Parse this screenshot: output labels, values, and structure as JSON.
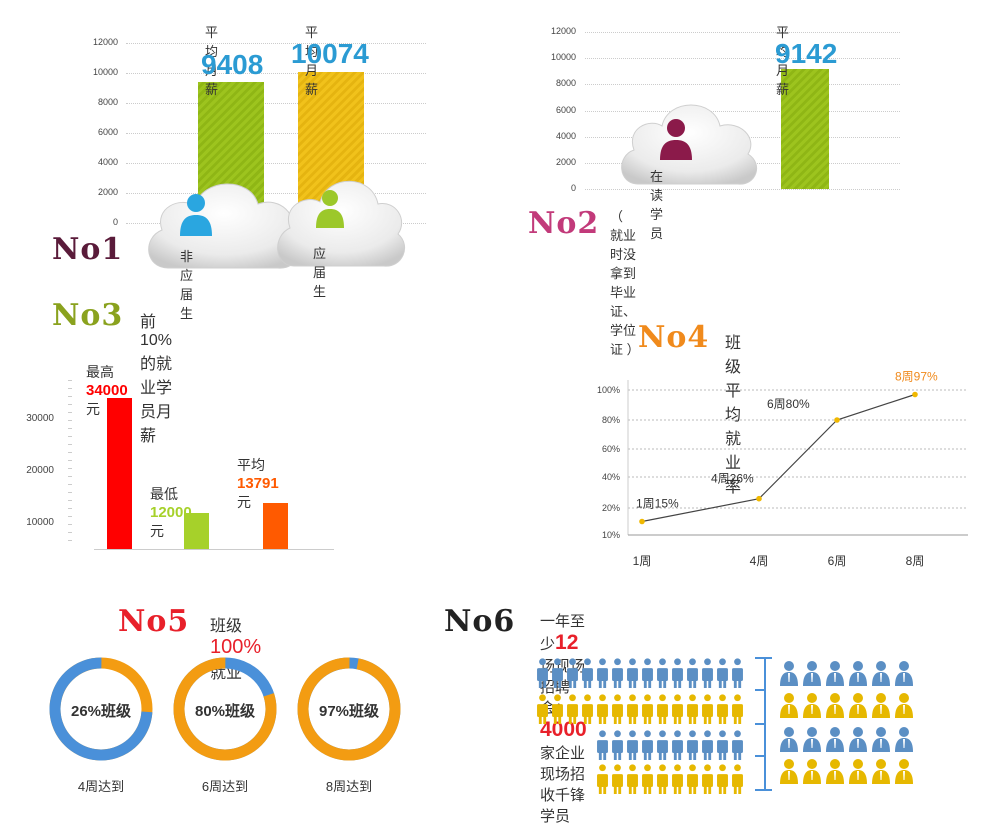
{
  "panel1": {
    "no": "No1",
    "bar_caption": "平均月薪",
    "cloud_labels": [
      "非应届生",
      "应届生"
    ],
    "colors": {
      "bar1": "#9dc41e",
      "bar2": "#f1c21b",
      "no": "#5a1b3a",
      "value": "#2b9bd3"
    },
    "chart_data": {
      "type": "bar",
      "categories": [
        "非应届生",
        "应届生"
      ],
      "values": [
        9408,
        10074
      ],
      "value_labels": [
        "9408",
        "10074"
      ],
      "yticks": [
        "12000",
        "10000",
        "8000",
        "6000",
        "4000",
        "2000",
        "0"
      ],
      "ylim": [
        0,
        12000
      ]
    }
  },
  "panel2": {
    "no": "No2",
    "bar_caption": "平均月薪",
    "cloud_label": "在读学员",
    "note": "（ 就业时没拿到毕业证、学位证 ）",
    "colors": {
      "bar": "#9dc41e",
      "no": "#c23a7a",
      "value": "#2b9bd3"
    },
    "chart_data": {
      "type": "bar",
      "categories": [
        "在读学员"
      ],
      "values": [
        9142
      ],
      "value_labels": [
        "9142"
      ],
      "yticks": [
        "12000",
        "10000",
        "8000",
        "6000",
        "4000",
        "2000",
        "0"
      ],
      "ylim": [
        0,
        12000
      ]
    }
  },
  "panel3": {
    "no": "No3",
    "title": "前10%的就业学员月薪",
    "colors": {
      "no": "#8aa21e",
      "max": "#ff0000",
      "min": "#a6d12a",
      "avg": "#ff5a00"
    },
    "labels": [
      {
        "prefix": "最高",
        "value": "34000",
        "suffix": "元"
      },
      {
        "prefix": "最低",
        "value": "12000",
        "suffix": " 元"
      },
      {
        "prefix": "平均",
        "value": "13791",
        "suffix": "元"
      }
    ],
    "chart_data": {
      "type": "bar",
      "categories": [
        "最高",
        "最低",
        "平均"
      ],
      "values": [
        34000,
        12000,
        13791
      ],
      "yticks": [
        "30000",
        "20000",
        "10000"
      ],
      "ylim": [
        5000,
        36000
      ]
    }
  },
  "panel4": {
    "no": "No4",
    "title": "班级平均就业率",
    "colors": {
      "no": "#f08a1c",
      "line": "#444444",
      "point": "#f0b800",
      "last_label": "#f08a1c"
    },
    "chart_data": {
      "type": "line",
      "x_labels": [
        "1周",
        "4周",
        "6周",
        "8周"
      ],
      "x": [
        1,
        4,
        6,
        8
      ],
      "values": [
        15,
        26,
        80,
        97
      ],
      "point_labels": [
        "1周15%",
        "4周26%",
        "6周80%",
        "8周97%"
      ],
      "yticks": [
        "100%",
        "80%",
        "60%",
        "40%",
        "20%",
        "10%"
      ]
    }
  },
  "panel5": {
    "no": "No5",
    "title_prefix": "班级",
    "title_highlight": "100%",
    "title_suffix": "就业",
    "colors": {
      "no": "#e8202a",
      "highlight": "#e8202a",
      "blue": "#4a90d9",
      "orange": "#f39c12"
    },
    "chart_data": {
      "type": "pie",
      "items": [
        {
          "label": "26%班级",
          "value": 26,
          "caption": "4周达到"
        },
        {
          "label": "80%班级",
          "value": 80,
          "caption": "6周达到"
        },
        {
          "label": "97%班级",
          "value": 97,
          "caption": "8周达到"
        }
      ]
    }
  },
  "panel6": {
    "no": "No6",
    "title_a": "一年至少",
    "title_num1": "12",
    "title_b": "场现场招聘会：",
    "title_num2": "4000",
    "title_c": "家企业现场招收千锋学员",
    "colors": {
      "no": "#222222",
      "num": "#e8202a",
      "blue": "#5b8fc4",
      "yellow": "#e6b800",
      "bracket": "#4a90d9"
    }
  }
}
